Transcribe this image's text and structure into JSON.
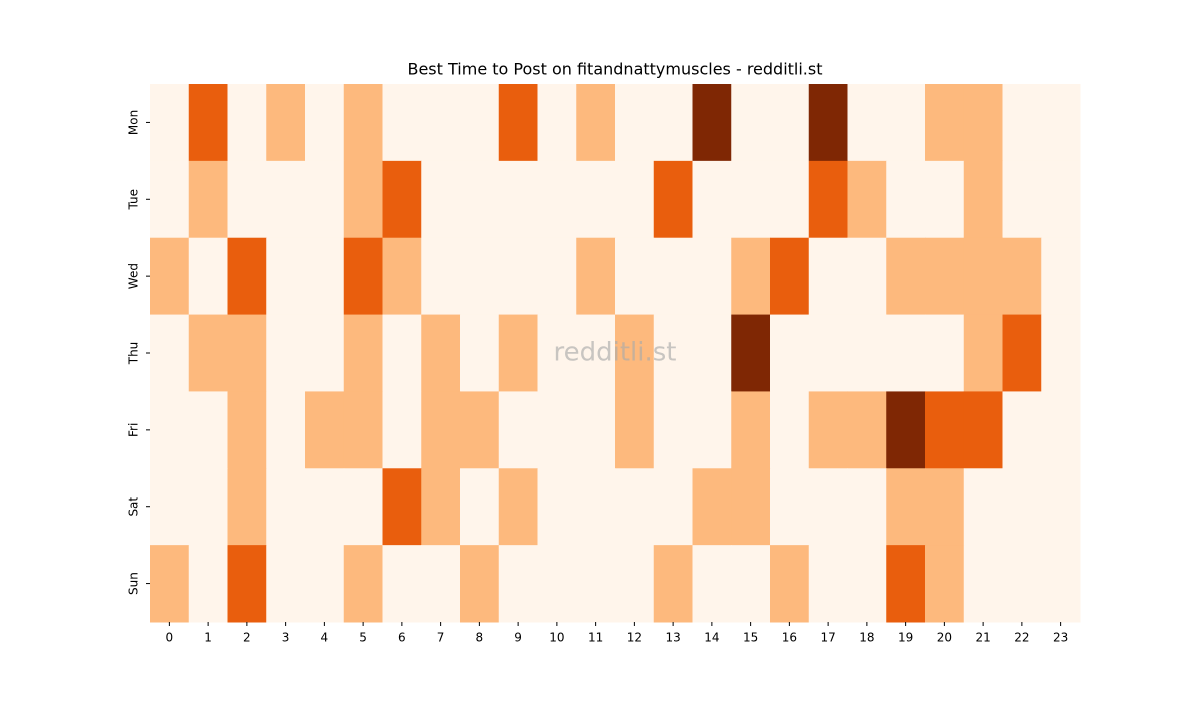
{
  "chart_data": {
    "type": "heatmap",
    "title": "Best Time to Post on fitandnattymuscles - redditli.st",
    "watermark": "redditli.st",
    "x": [
      0,
      1,
      2,
      3,
      4,
      5,
      6,
      7,
      8,
      9,
      10,
      11,
      12,
      13,
      14,
      15,
      16,
      17,
      18,
      19,
      20,
      21,
      22,
      23
    ],
    "xlim": [
      -0.5,
      23.5
    ],
    "y": [
      "Mon",
      "Tue",
      "Wed",
      "Thu",
      "Fri",
      "Sat",
      "Sun"
    ],
    "values": [
      [
        0,
        2,
        0,
        1,
        0,
        1,
        0,
        0,
        0,
        2,
        0,
        1,
        0,
        0,
        3,
        0,
        0,
        3,
        0,
        0,
        1,
        1,
        0,
        0
      ],
      [
        0,
        1,
        0,
        0,
        0,
        1,
        2,
        0,
        0,
        0,
        0,
        0,
        0,
        2,
        0,
        0,
        0,
        2,
        1,
        0,
        0,
        1,
        0,
        0
      ],
      [
        1,
        0,
        2,
        0,
        0,
        2,
        1,
        0,
        0,
        0,
        0,
        1,
        0,
        0,
        0,
        1,
        2,
        0,
        0,
        1,
        1,
        1,
        1,
        0
      ],
      [
        0,
        1,
        1,
        0,
        0,
        1,
        0,
        1,
        0,
        1,
        0,
        0,
        1,
        0,
        0,
        3,
        0,
        0,
        0,
        0,
        0,
        1,
        2,
        0
      ],
      [
        0,
        0,
        1,
        0,
        1,
        1,
        0,
        1,
        1,
        0,
        0,
        0,
        1,
        0,
        0,
        1,
        0,
        1,
        1,
        3,
        2,
        2,
        0,
        0
      ],
      [
        0,
        0,
        1,
        0,
        0,
        0,
        2,
        1,
        0,
        1,
        0,
        0,
        0,
        0,
        1,
        1,
        0,
        0,
        0,
        1,
        1,
        0,
        0,
        0
      ],
      [
        1,
        0,
        2,
        0,
        0,
        1,
        0,
        0,
        1,
        0,
        0,
        0,
        0,
        1,
        0,
        0,
        1,
        0,
        0,
        2,
        1,
        0,
        0,
        0
      ]
    ],
    "zlim": [
      0,
      3
    ],
    "colors": [
      "#fff5eb",
      "#fdb97d",
      "#e95e0d",
      "#7f2704"
    ]
  }
}
